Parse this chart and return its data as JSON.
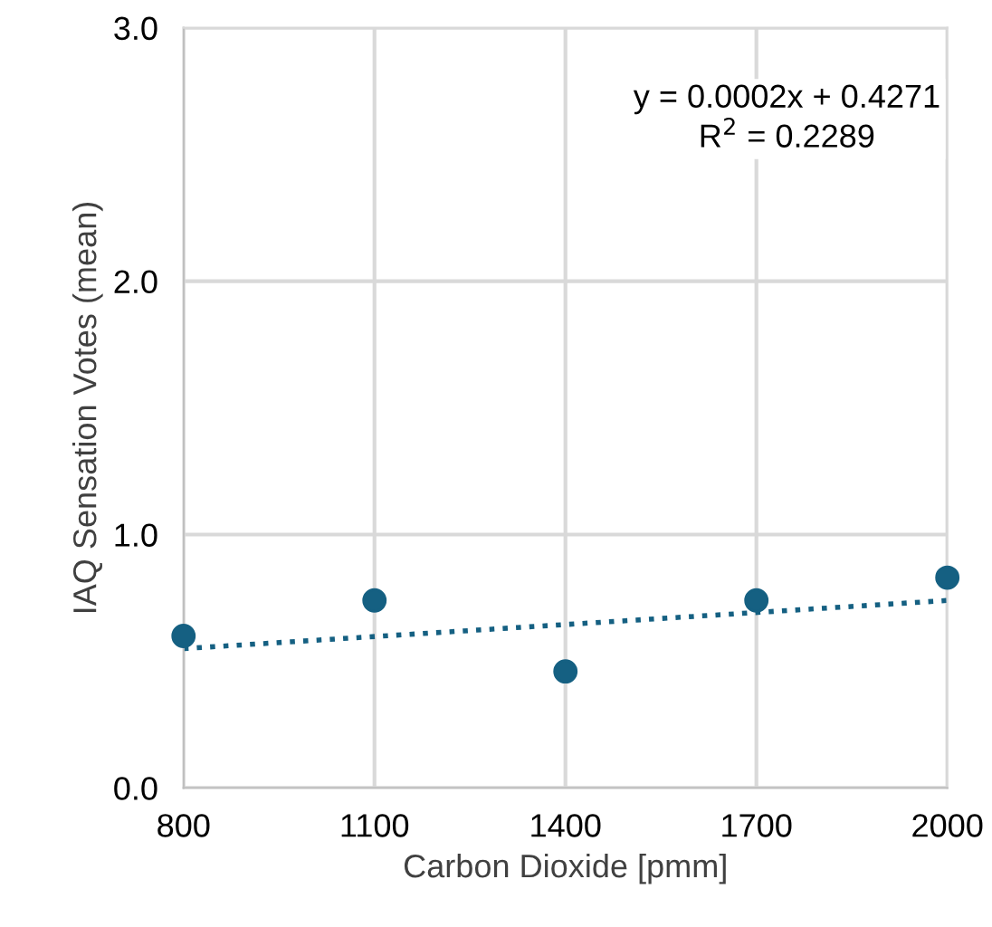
{
  "chart_data": {
    "type": "scatter",
    "xlabel": "Carbon Dioxide [pmm]",
    "ylabel": "IAQ Sensation Votes (mean)",
    "x": [
      800,
      1100,
      1400,
      1700,
      2000
    ],
    "series": [
      {
        "color": "#156082",
        "values": [
          0.6,
          0.74,
          0.46,
          0.74,
          0.83
        ],
        "marker": "circle"
      },
      {
        "type": "line",
        "color": "#156082",
        "x": [
          800,
          2000
        ],
        "values": [
          0.55,
          0.74
        ],
        "line_style": "dotted",
        "marker": "none"
      }
    ],
    "annotations": [
      {
        "text": "y = 0.0002x + 0.4271\nR$^{2}$ = 0.2289"
      }
    ],
    "xlim": [
      800,
      2000
    ],
    "xticks": [
      800,
      1100,
      1400,
      1700,
      2000
    ],
    "ylim": [
      0,
      3
    ],
    "yticks": [
      {
        "value": 0,
        "label": "0.0"
      },
      {
        "value": 1,
        "label": "1.0"
      },
      {
        "value": 2,
        "label": "2.0"
      },
      {
        "value": 3,
        "label": "3.0"
      }
    ],
    "grid": true
  }
}
